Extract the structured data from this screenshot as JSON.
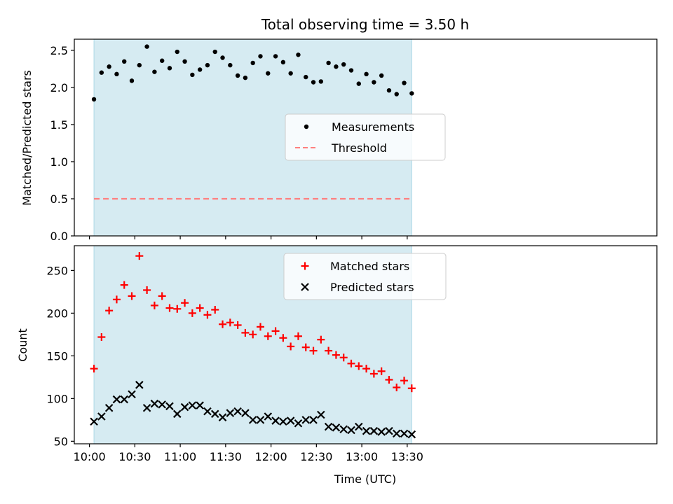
{
  "chart_data": {
    "title": "Total observing time = 3.50 h",
    "type": "scatter",
    "shared_x": {
      "label": "Time (UTC)",
      "unit": "minutes after 10:00 UTC",
      "lim": [
        -10,
        375
      ],
      "ticks": [
        {
          "value": 0,
          "label": "10:00"
        },
        {
          "value": 30,
          "label": "10:30"
        },
        {
          "value": 60,
          "label": "11:00"
        },
        {
          "value": 90,
          "label": "11:30"
        },
        {
          "value": 120,
          "label": "12:00"
        },
        {
          "value": 150,
          "label": "12:30"
        },
        {
          "value": 180,
          "label": "13:00"
        },
        {
          "value": 210,
          "label": "13:30"
        }
      ],
      "observing_window": [
        3,
        213
      ],
      "observing_window_color": "#add8e6"
    },
    "panels": [
      {
        "ylabel": "Matched/Predicted stars",
        "ylim": [
          0,
          2.65
        ],
        "yticks": [
          {
            "value": 0.0,
            "label": "0.0"
          },
          {
            "value": 0.5,
            "label": "0.5"
          },
          {
            "value": 1.0,
            "label": "1.0"
          },
          {
            "value": 1.5,
            "label": "1.5"
          },
          {
            "value": 2.0,
            "label": "2.0"
          },
          {
            "value": 2.5,
            "label": "2.5"
          }
        ],
        "legend": {
          "position": "center",
          "entries": [
            {
              "label": "Measurements",
              "marker": "dot",
              "color": "#000000"
            },
            {
              "label": "Threshold",
              "marker": "dashed-line",
              "color": "#ff7f7f"
            }
          ]
        },
        "series": [
          {
            "name": "Measurements",
            "marker": "dot",
            "color": "#000000",
            "x": [
              3,
              8,
              13,
              18,
              23,
              28,
              33,
              38,
              43,
              48,
              53,
              58,
              63,
              68,
              73,
              78,
              83,
              88,
              93,
              98,
              103,
              108,
              113,
              118,
              123,
              128,
              133,
              138,
              143,
              148,
              153,
              158,
              163,
              168,
              173,
              178,
              183,
              188,
              193,
              198,
              203,
              208,
              213
            ],
            "y": [
              1.84,
              2.2,
              2.28,
              2.18,
              2.35,
              2.09,
              2.3,
              2.55,
              2.21,
              2.36,
              2.26,
              2.48,
              2.35,
              2.17,
              2.24,
              2.3,
              2.48,
              2.4,
              2.3,
              2.16,
              2.13,
              2.33,
              2.42,
              2.19,
              2.42,
              2.34,
              2.19,
              2.44,
              2.14,
              2.07,
              2.08,
              2.33,
              2.28,
              2.31,
              2.23,
              2.05,
              2.18,
              2.07,
              2.16,
              1.96,
              1.91,
              2.06,
              1.92
            ]
          },
          {
            "name": "Threshold",
            "marker": "dashed-line",
            "color": "#ff7f7f",
            "constant_y": 0.5,
            "x_range": [
              3,
              213
            ]
          }
        ]
      },
      {
        "ylabel": "Count",
        "ylim": [
          47,
          279
        ],
        "yticks": [
          {
            "value": 50,
            "label": "50"
          },
          {
            "value": 100,
            "label": "100"
          },
          {
            "value": 150,
            "label": "150"
          },
          {
            "value": 200,
            "label": "200"
          },
          {
            "value": 250,
            "label": "250"
          }
        ],
        "legend": {
          "position": "upper center",
          "entries": [
            {
              "label": "Matched stars",
              "marker": "plus",
              "color": "#ff0000"
            },
            {
              "label": "Predicted stars",
              "marker": "x",
              "color": "#000000"
            }
          ]
        },
        "series": [
          {
            "name": "Matched stars",
            "marker": "plus",
            "color": "#ff0000",
            "x": [
              3,
              8,
              13,
              18,
              23,
              28,
              33,
              38,
              43,
              48,
              53,
              58,
              63,
              68,
              73,
              78,
              83,
              88,
              93,
              98,
              103,
              108,
              113,
              118,
              123,
              128,
              133,
              138,
              143,
              148,
              153,
              158,
              163,
              168,
              173,
              178,
              183,
              188,
              193,
              198,
              203,
              208,
              213
            ],
            "y": [
              135,
              172,
              203,
              216,
              233,
              220,
              267,
              227,
              209,
              220,
              206,
              205,
              212,
              200,
              206,
              198,
              204,
              187,
              189,
              186,
              177,
              175,
              184,
              173,
              179,
              171,
              161,
              173,
              160,
              156,
              169,
              156,
              151,
              148,
              141,
              138,
              135,
              129,
              132,
              122,
              113,
              121,
              112
            ]
          },
          {
            "name": "Predicted stars",
            "marker": "x",
            "color": "#000000",
            "x": [
              3,
              8,
              13,
              18,
              23,
              28,
              33,
              38,
              43,
              48,
              53,
              58,
              63,
              68,
              73,
              78,
              83,
              88,
              93,
              98,
              103,
              108,
              113,
              118,
              123,
              128,
              133,
              138,
              143,
              148,
              153,
              158,
              163,
              168,
              173,
              178,
              183,
              188,
              193,
              198,
              203,
              208,
              213
            ],
            "y": [
              73,
              79,
              89,
              99,
              99,
              105,
              116,
              89,
              94,
              93,
              91,
              82,
              90,
              92,
              92,
              85,
              82,
              78,
              83,
              85,
              83,
              75,
              75,
              79,
              74,
              73,
              74,
              71,
              75,
              75,
              81,
              67,
              66,
              64,
              63,
              67,
              62,
              62,
              61,
              62,
              59,
              59,
              58
            ]
          }
        ]
      }
    ]
  }
}
